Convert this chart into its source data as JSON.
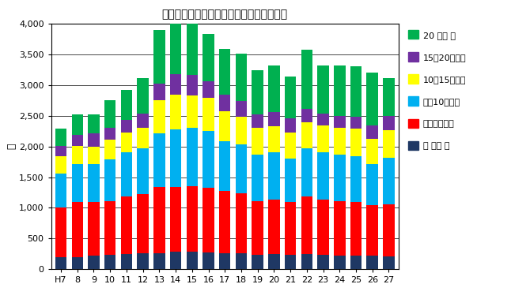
{
  "title": "同居期間別離婚件数の年次推移（熊本県）",
  "ylabel": "件",
  "xlabel_labels": [
    "H7",
    "8",
    "9",
    "10",
    "11",
    "12",
    "13",
    "14",
    "15",
    "16",
    "17",
    "18",
    "19",
    "20",
    "21",
    "22",
    "23",
    "24",
    "25",
    "26",
    "27"
  ],
  "ylim": [
    0,
    4000
  ],
  "yticks": [
    0,
    500,
    1000,
    1500,
    2000,
    2500,
    3000,
    3500,
    4000
  ],
  "series": {
    "１年未満": {
      "color": "#1F3864",
      "values": [
        200,
        200,
        220,
        230,
        250,
        260,
        260,
        280,
        280,
        270,
        260,
        260,
        230,
        240,
        230,
        240,
        230,
        220,
        220,
        220,
        210
      ]
    },
    "１～５年未満": {
      "color": "#FF0000",
      "values": [
        800,
        890,
        870,
        880,
        930,
        970,
        1080,
        1060,
        1070,
        1060,
        1020,
        980,
        880,
        900,
        860,
        950,
        900,
        890,
        870,
        830,
        850
      ]
    },
    "５～10年未満": {
      "color": "#00B0F0",
      "values": [
        560,
        620,
        620,
        680,
        720,
        740,
        880,
        940,
        960,
        920,
        810,
        800,
        760,
        760,
        710,
        780,
        780,
        760,
        750,
        660,
        750
      ]
    },
    "10～15年未満": {
      "color": "#FFFF00",
      "values": [
        280,
        300,
        290,
        320,
        330,
        330,
        530,
        560,
        520,
        540,
        480,
        440,
        430,
        430,
        430,
        420,
        430,
        430,
        450,
        420,
        460
      ]
    },
    "15～20年未満": {
      "color": "#7030A0",
      "values": [
        170,
        180,
        210,
        200,
        200,
        240,
        280,
        340,
        340,
        280,
        270,
        260,
        220,
        230,
        230,
        230,
        200,
        200,
        200,
        210,
        230
      ]
    },
    "20年以上": {
      "color": "#00B050",
      "values": [
        280,
        340,
        320,
        440,
        490,
        580,
        870,
        820,
        930,
        770,
        750,
        780,
        730,
        760,
        680,
        960,
        780,
        820,
        820,
        870,
        620
      ]
    }
  },
  "legend_order": [
    "20年以上",
    "15～20年未満",
    "10～15年未満",
    "５～10年未満",
    "１～５年未満",
    "１年未満"
  ],
  "legend_labels": {
    "20年以上": "20 年以 上",
    "15～20年未満": "15～20年未満",
    "10～15年未満": "10～15年未満",
    "５～10年未満": "５～10年未満",
    "１～５年未満": "１～５年未満",
    "１年未満": "１ 年未 満"
  },
  "bar_width": 0.7,
  "background_color": "#FFFFFF",
  "grid_color": "#000000"
}
